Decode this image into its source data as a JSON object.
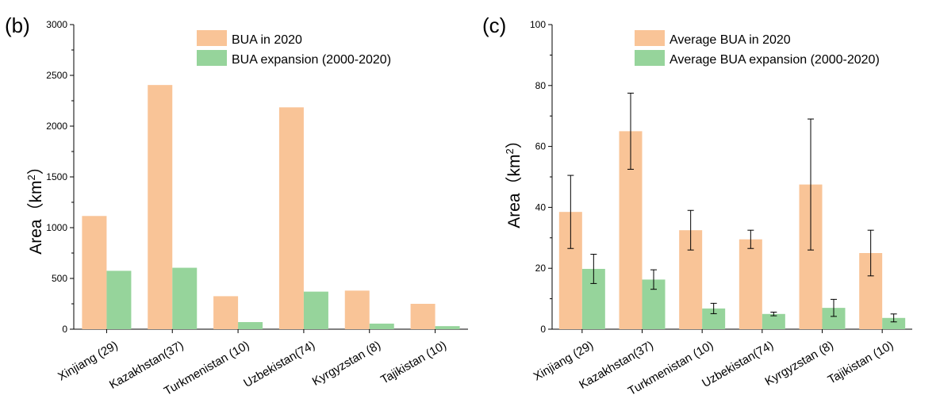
{
  "colors": {
    "bua_2020": "#f9c497",
    "bua_expansion": "#96d49b",
    "error_bar": "#000000"
  },
  "chart_data": [
    {
      "type": "bar",
      "panel": "(b)",
      "categories": [
        "Xinjiang (29)",
        "Kazakhstan(37)",
        "Turkmenistan (10)",
        "Uzbekistan(74)",
        "Kyrgyzstan (8)",
        "Tajikistan (10)"
      ],
      "series": [
        {
          "name": "BUA in 2020",
          "values": [
            1115,
            2405,
            325,
            2185,
            380,
            250
          ]
        },
        {
          "name": "BUA expansion (2000-2020)",
          "values": [
            575,
            605,
            70,
            370,
            55,
            30
          ]
        }
      ],
      "ylabel_prefix": "Area（km",
      "ylabel_sup": "2",
      "ylabel_suffix": "）",
      "ylim": [
        0,
        3000
      ],
      "yticks": [
        0,
        500,
        1000,
        1500,
        2000,
        2500,
        3000
      ],
      "legend": "top-right",
      "grid": false
    },
    {
      "type": "bar",
      "panel": "(c)",
      "categories": [
        "Xinjiang (29)",
        "Kazakhstan(37)",
        "Turkmenistan (10)",
        "Uzbekistan(74)",
        "Kyrgyzstan (8)",
        "Tajikistan (10)"
      ],
      "series": [
        {
          "name": "Average BUA in 2020",
          "values": [
            38.5,
            65,
            32.5,
            29.5,
            47.5,
            25
          ],
          "errors": [
            12,
            12.5,
            6.5,
            3,
            21.5,
            7.5
          ]
        },
        {
          "name": "Average BUA expansion (2000-2020)",
          "values": [
            19.8,
            16.3,
            6.8,
            5,
            7,
            3.7
          ],
          "errors": [
            4.8,
            3.2,
            1.7,
            0.6,
            2.8,
            1.3
          ]
        }
      ],
      "ylabel_prefix": "Area（km",
      "ylabel_sup": "2",
      "ylabel_suffix": "）",
      "ylim": [
        0,
        100
      ],
      "yticks": [
        0,
        20,
        40,
        60,
        80,
        100
      ],
      "legend": "top-right",
      "grid": false
    }
  ]
}
